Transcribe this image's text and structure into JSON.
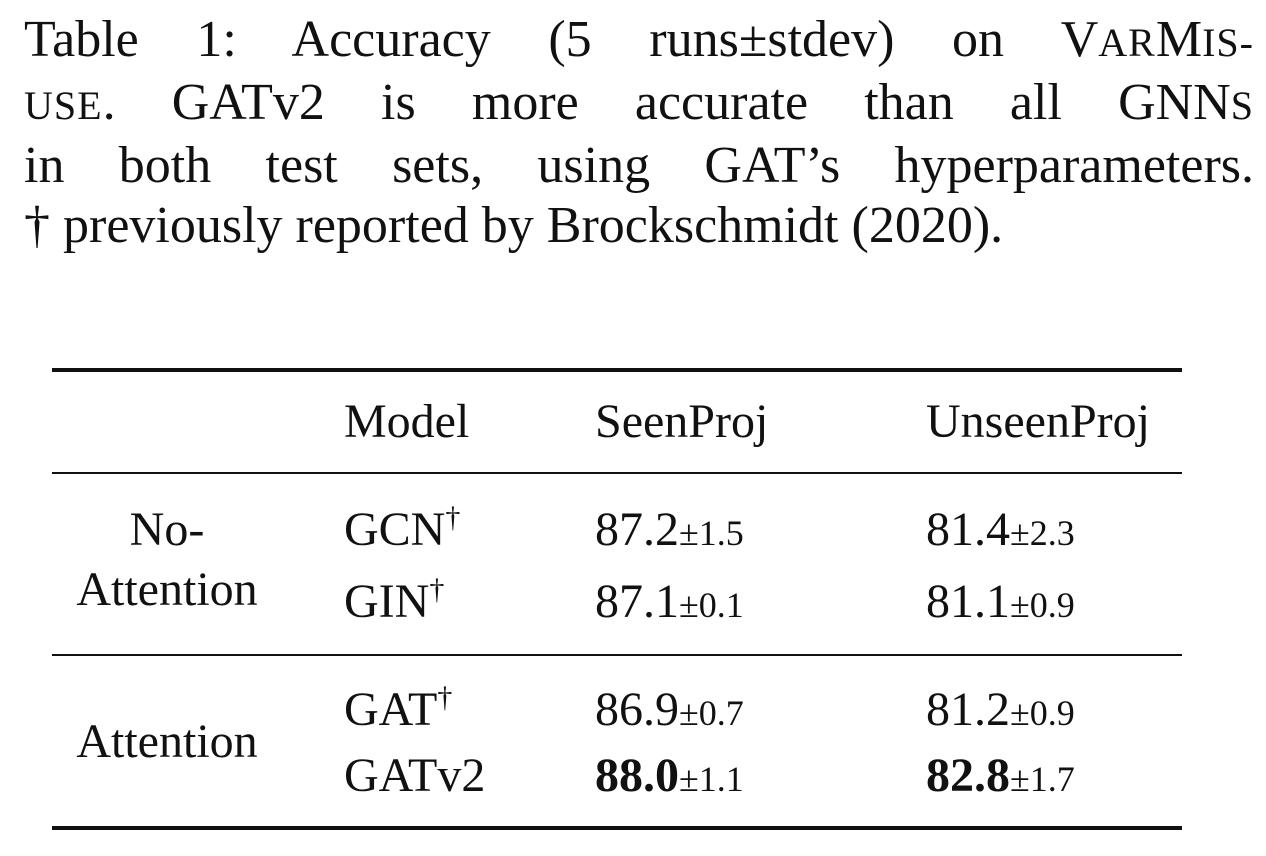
{
  "caption": {
    "line1_a": "Table 1: Accuracy (5 runs±stdev) on V",
    "line1_sc1": "AR",
    "line1_b": "M",
    "line1_sc2": "IS-",
    "line2_sc": "USE",
    "line2_rest": ". GATv2 is more accurate than all GNN",
    "line2_sc2": "S",
    "line3": "in both test sets, using GAT’s hyperparameters.",
    "line4": "† previously reported by Brockschmidt (2020)."
  },
  "table": {
    "headers": {
      "model": "Model",
      "seen": "SeenProj",
      "unseen": "UnseenProj"
    },
    "groups": [
      {
        "label_line1": "No-",
        "label_line2": "Attention"
      },
      {
        "label": "Attention"
      }
    ],
    "dagger": "†",
    "rows": [
      {
        "model": "GCN",
        "dagger": "†",
        "seen": "87.2",
        "seen_std": "±1.5",
        "unseen": "81.4",
        "unseen_std": "±2.3"
      },
      {
        "model": "GIN",
        "dagger": "†",
        "seen": "87.1",
        "seen_std": "±0.1",
        "unseen": "81.1",
        "unseen_std": "±0.9"
      },
      {
        "model": "GAT",
        "dagger": "†",
        "seen": "86.9",
        "seen_std": "±0.7",
        "unseen": "81.2",
        "unseen_std": "±0.9"
      },
      {
        "model": "GATv2",
        "dagger": "",
        "seen": "88.0",
        "seen_std": "±1.1",
        "unseen": "82.8",
        "unseen_std": "±1.7"
      }
    ]
  }
}
